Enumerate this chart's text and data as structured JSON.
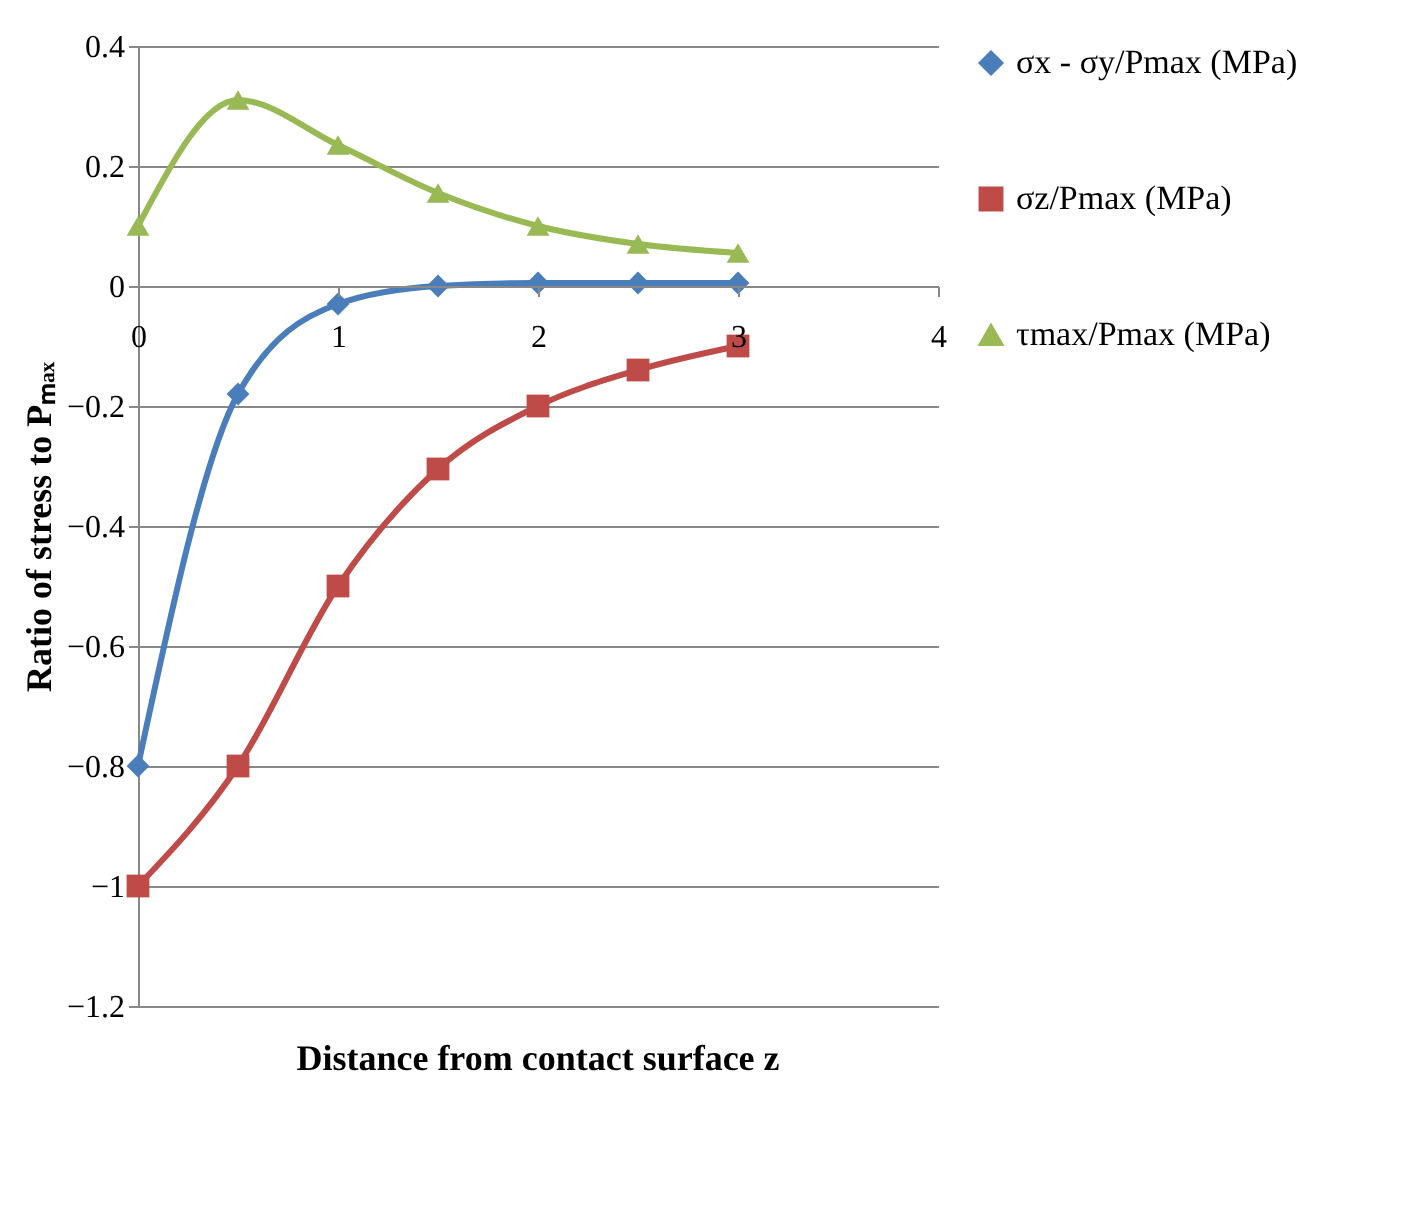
{
  "chart_data": {
    "type": "line",
    "xlabel": "Distance from contact surface z",
    "ylabel": "Ratio of stress to Pₘₐₓ",
    "x": [
      0,
      0.5,
      1,
      1.5,
      2,
      2.5,
      3
    ],
    "series": [
      {
        "name": "σx - σy/Pmax (MPa)",
        "color": "#4a7ebb",
        "marker": "diamond",
        "values": [
          -0.8,
          -0.18,
          -0.03,
          0,
          0.005,
          0.005,
          0.005
        ]
      },
      {
        "name": "σz/Pmax (MPa)",
        "color": "#be4b48",
        "marker": "square",
        "values": [
          -1,
          -0.8,
          -0.5,
          -0.305,
          -0.2,
          -0.14,
          -0.1
        ]
      },
      {
        "name": "τmax/Pmax (MPa)",
        "color": "#98b954",
        "marker": "triangle",
        "values": [
          0.1,
          0.31,
          0.235,
          0.155,
          0.1,
          0.07,
          0.055
        ]
      }
    ],
    "xlim": [
      0,
      4
    ],
    "xticks": [
      0,
      1,
      2,
      3,
      4
    ],
    "ylim": [
      -1.2,
      0.4
    ],
    "yticks": [
      -1.2,
      -1,
      -0.8,
      -0.6,
      -0.4,
      -0.2,
      0,
      0.2,
      0.4
    ],
    "grid": "y",
    "legend": "right",
    "line_style": "solid"
  }
}
